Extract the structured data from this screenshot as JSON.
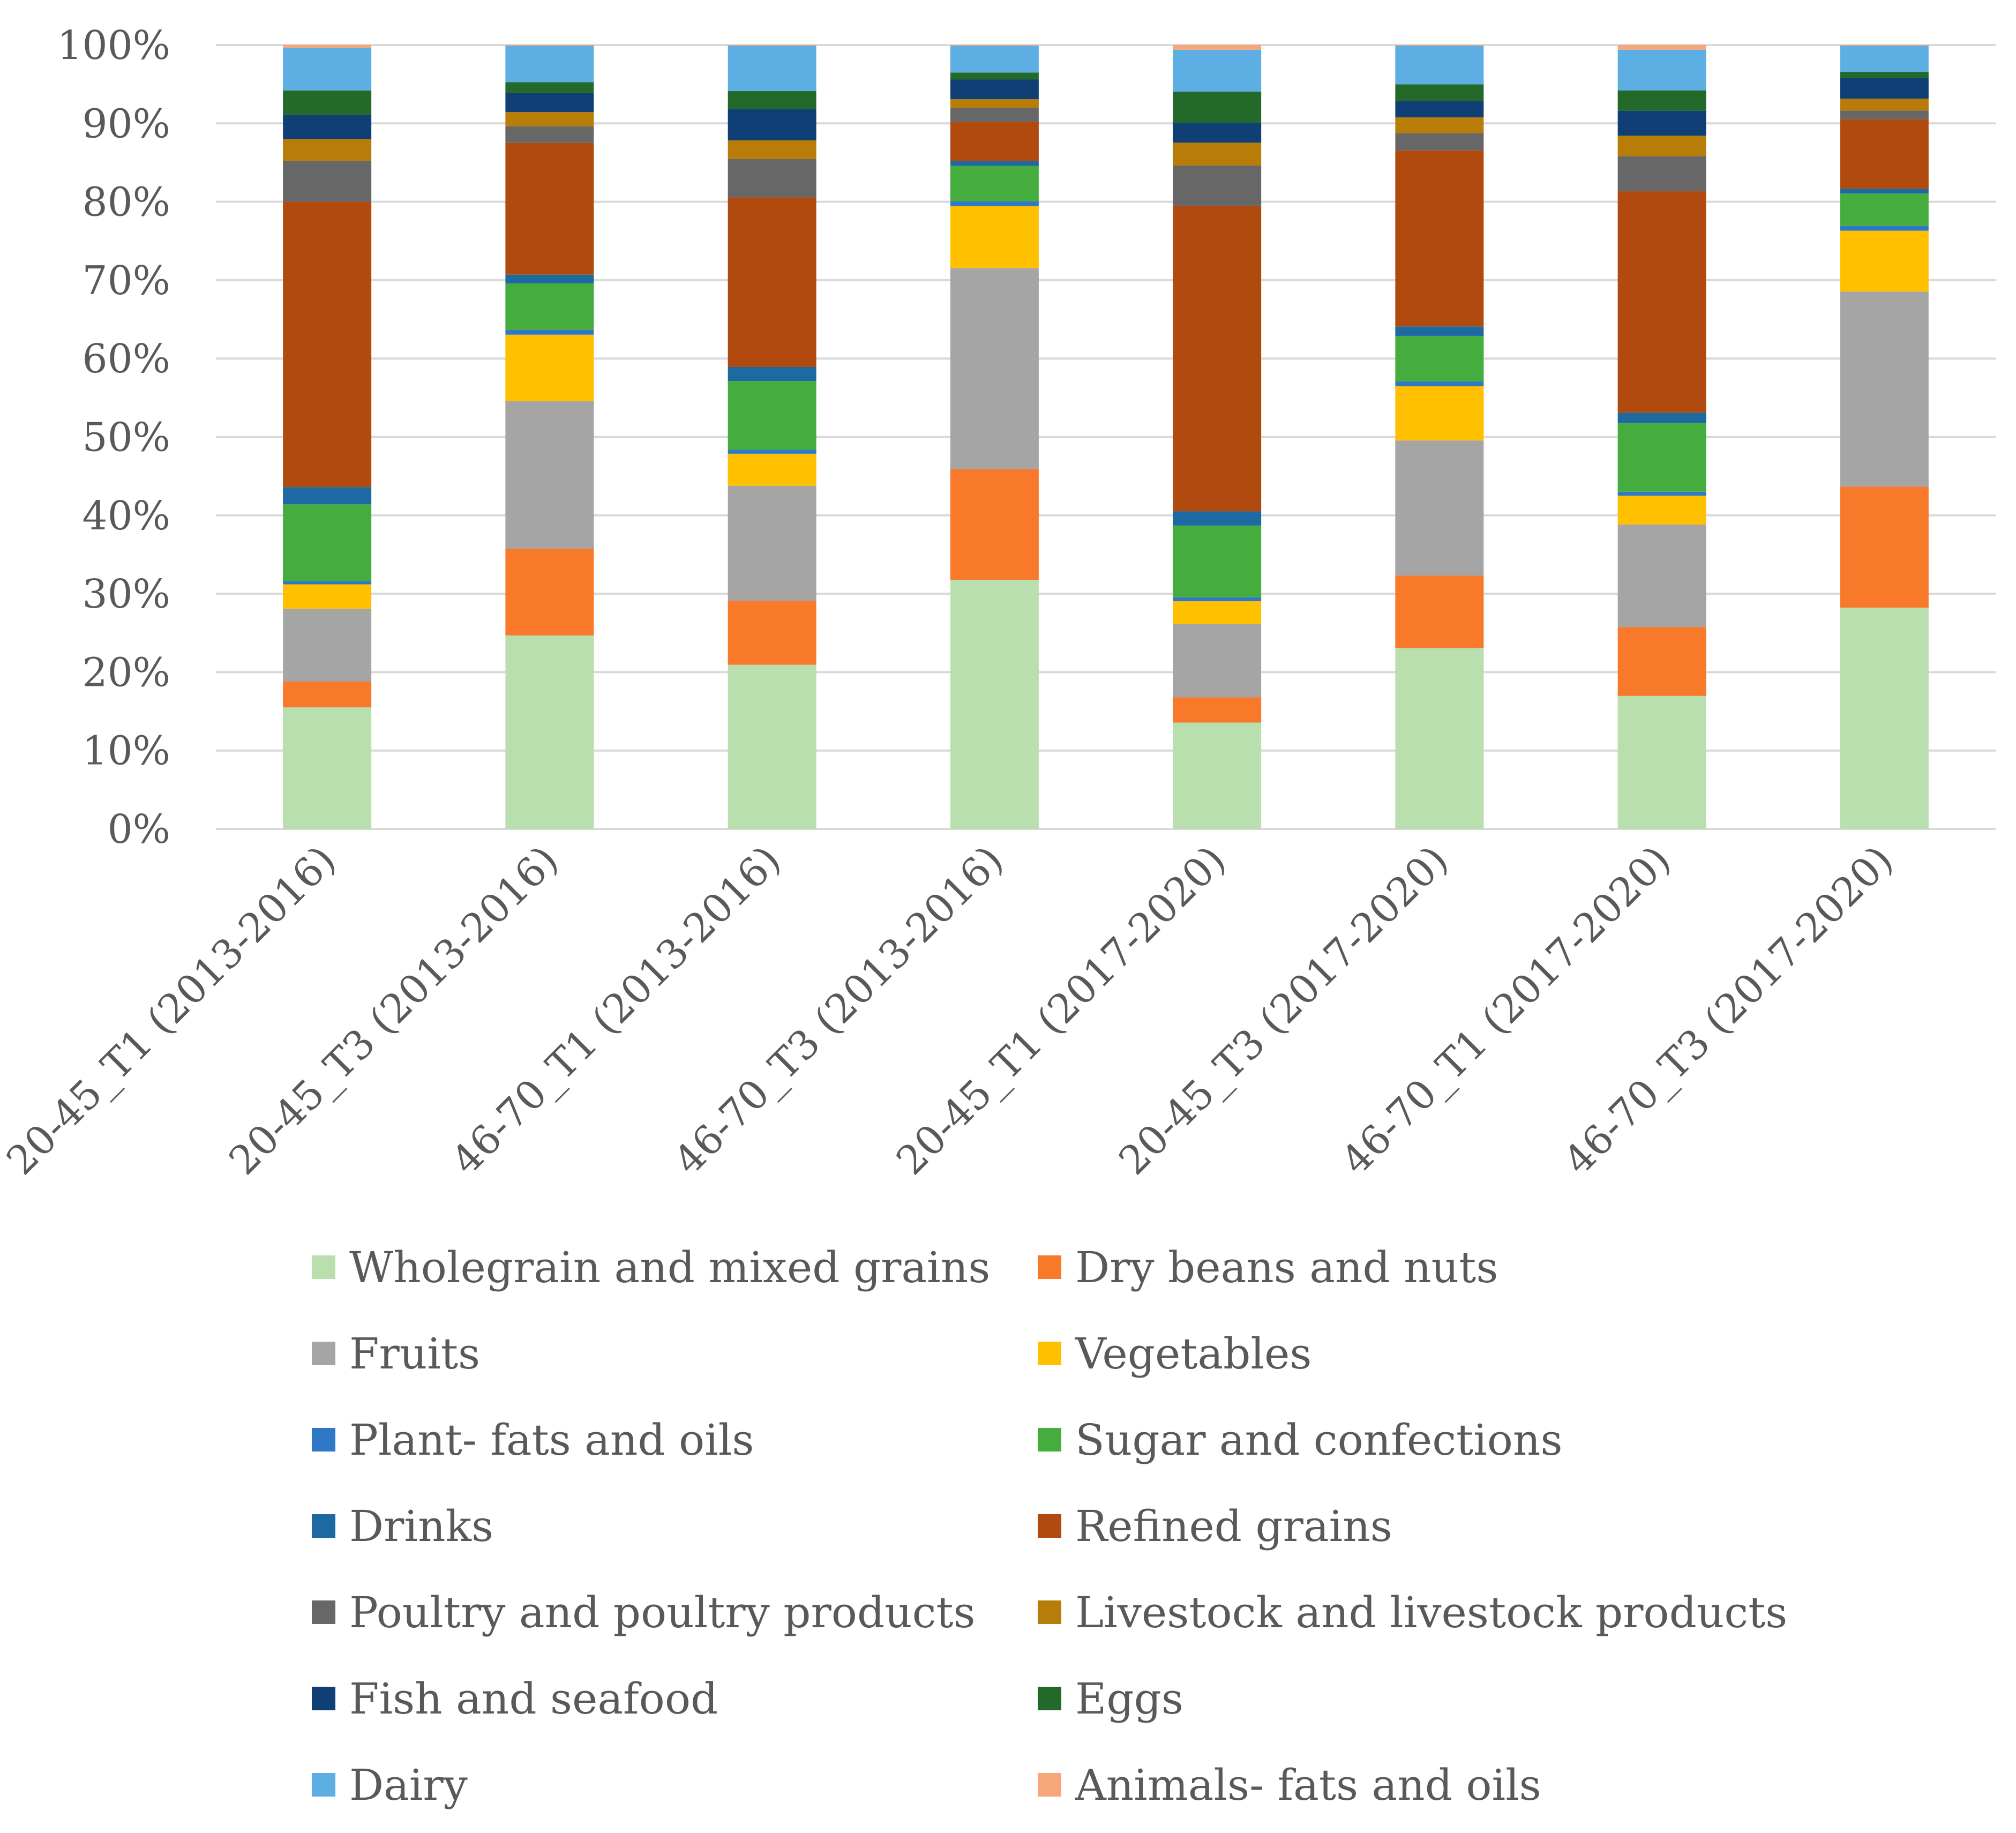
{
  "chart_data": {
    "type": "stacked-bar-100",
    "title": "",
    "xlabel": "",
    "ylabel": "",
    "ylim": [
      0,
      100
    ],
    "y_ticks": [
      "0%",
      "10%",
      "20%",
      "30%",
      "40%",
      "50%",
      "60%",
      "70%",
      "80%",
      "90%",
      "100%"
    ],
    "grid": true,
    "legend_position": "bottom",
    "categories": [
      "20-45_T1 (2013-2016)",
      "20-45_T3 (2013-2016)",
      "46-70_T1 (2013-2016)",
      "46-70_T3 (2013-2016)",
      "20-45_T1 (2017-2020)",
      "20-45_T3 (2017-2020)",
      "46-70_T1 (2017-2020)",
      "46-70_T3 (2017-2020)"
    ],
    "series": [
      {
        "name": "Wholegrain and mixed grains",
        "color": "#b8dfad",
        "values": [
          15.5,
          24.5,
          21.0,
          31.7,
          13.5,
          23.0,
          17.0,
          28.0
        ]
      },
      {
        "name": "Dry beans and nuts",
        "color": "#f8792a",
        "values": [
          3.3,
          11.0,
          8.2,
          14.1,
          3.2,
          9.2,
          8.8,
          15.3
        ]
      },
      {
        "name": "Fruits",
        "color": "#a5a5a5",
        "values": [
          9.3,
          18.7,
          14.7,
          25.6,
          9.3,
          17.2,
          13.1,
          24.7
        ]
      },
      {
        "name": "Vegetables",
        "color": "#ffc000",
        "values": [
          3.1,
          8.4,
          4.1,
          7.9,
          2.9,
          6.9,
          3.7,
          7.7
        ]
      },
      {
        "name": "Plant- fats and oils",
        "color": "#2f78c8",
        "values": [
          0.4,
          0.6,
          0.5,
          0.6,
          0.5,
          0.6,
          0.5,
          0.6
        ]
      },
      {
        "name": "Sugar and confections",
        "color": "#45ad3e",
        "values": [
          9.8,
          5.9,
          8.8,
          4.5,
          9.1,
          5.8,
          8.8,
          4.1
        ]
      },
      {
        "name": "Drinks",
        "color": "#1d6aa3",
        "values": [
          2.2,
          1.1,
          1.8,
          0.6,
          1.8,
          1.2,
          1.3,
          0.6
        ]
      },
      {
        "name": "Refined grains",
        "color": "#b14a0f",
        "values": [
          36.4,
          16.7,
          21.7,
          5.0,
          38.8,
          22.4,
          28.3,
          8.8
        ]
      },
      {
        "name": "Poultry and poultry products",
        "color": "#676767",
        "values": [
          5.2,
          2.1,
          4.9,
          1.8,
          5.1,
          2.2,
          4.5,
          1.1
        ]
      },
      {
        "name": "Livestock and livestock products",
        "color": "#b87c08",
        "values": [
          2.8,
          1.8,
          2.4,
          1.1,
          2.9,
          2.0,
          2.6,
          1.5
        ]
      },
      {
        "name": "Fish and seafood",
        "color": "#0f3f75",
        "values": [
          3.1,
          2.4,
          4.0,
          2.5,
          2.5,
          2.1,
          3.2,
          2.6
        ]
      },
      {
        "name": "Eggs",
        "color": "#236a2a",
        "values": [
          3.1,
          1.4,
          2.3,
          0.9,
          4.0,
          2.1,
          2.6,
          0.8
        ]
      },
      {
        "name": "Dairy",
        "color": "#5daee3",
        "values": [
          5.4,
          4.6,
          5.8,
          3.4,
          5.3,
          4.9,
          5.2,
          3.3
        ]
      },
      {
        "name": "Animals- fats and oils",
        "color": "#f7a57a",
        "values": [
          0.4,
          0.1,
          0.1,
          0.1,
          0.6,
          0.1,
          0.6,
          0.1
        ]
      }
    ]
  }
}
